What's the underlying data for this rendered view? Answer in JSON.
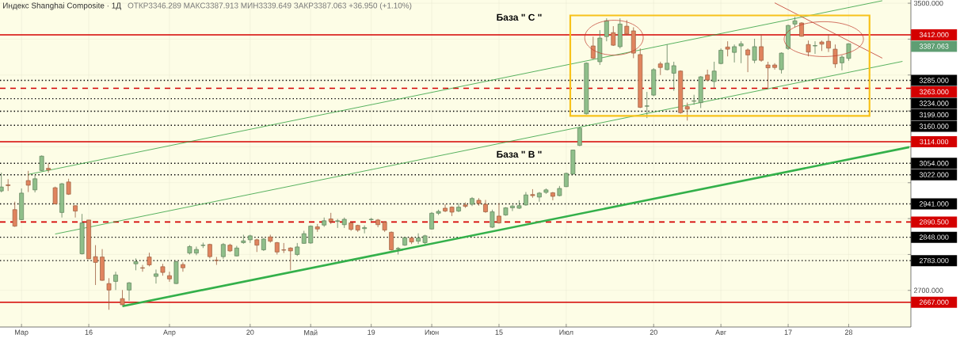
{
  "chart_data": {
    "type": "candlestick",
    "title": "Индекс Shanghai Composite · 1Д",
    "subtitle": "ОТКР3346.289 МАКС3387.913 МИН3339.649 ЗАКР3387.063 +36.950 (+1.10%)",
    "categories": [
      null,
      null,
      null,
      "Мар",
      null,
      null,
      null,
      null,
      null,
      null,
      null,
      null,
      null,
      "16",
      null,
      null,
      null,
      null,
      null,
      null,
      null,
      null,
      null,
      null,
      null,
      "Апр",
      null,
      null,
      null,
      null,
      null,
      null,
      null,
      null,
      null,
      null,
      null,
      "20",
      null,
      null,
      null,
      null,
      null,
      null,
      null,
      null,
      "Май",
      null,
      null,
      null,
      null,
      null,
      null,
      null,
      null,
      "19",
      null,
      null,
      null,
      null,
      null,
      null,
      null,
      null,
      "Июн",
      null,
      null,
      null,
      null,
      null,
      null,
      null,
      null,
      null,
      "15",
      null,
      null,
      null,
      null,
      null,
      null,
      null,
      null,
      null,
      "Июл",
      null,
      null,
      null,
      null,
      null,
      null,
      null,
      null,
      null,
      null,
      null,
      null,
      "20",
      null,
      null,
      null,
      null,
      null,
      null,
      null,
      null,
      null,
      "Авг",
      null,
      null,
      null,
      null,
      null,
      null,
      null,
      null,
      null,
      "17",
      null,
      null,
      null,
      null,
      null,
      null,
      null,
      null,
      "28",
      null,
      null,
      null,
      null,
      null,
      null,
      null,
      null,
      null
    ],
    "ohlc": [
      [
        2977,
        3028,
        2973,
        2988
      ],
      [
        2994,
        3010,
        2977,
        2992
      ],
      [
        2925,
        2947,
        2877,
        2879
      ],
      [
        2897,
        2984,
        2896,
        2971
      ],
      [
        3006,
        3033,
        2974,
        2993
      ],
      [
        2980,
        3021,
        2973,
        3011
      ],
      [
        3034,
        3076,
        3032,
        3074
      ],
      [
        3040,
        3054,
        3028,
        3036
      ],
      [
        2986,
        2989,
        2940,
        2941
      ],
      [
        2917,
        2999,
        2903,
        2997
      ],
      [
        3002,
        3011,
        2966,
        2968
      ],
      [
        2936,
        2936,
        2903,
        2921
      ],
      [
        2802,
        2913,
        2800,
        2888
      ],
      [
        2896,
        2896,
        2788,
        2788
      ],
      [
        2794,
        2826,
        2715,
        2778
      ],
      [
        2793,
        2815,
        2727,
        2728
      ],
      [
        2719,
        2734,
        2646,
        2701
      ],
      [
        2725,
        2752,
        2701,
        2743
      ],
      [
        2677,
        2701,
        2659,
        2660
      ],
      [
        2701,
        2723,
        2671,
        2721
      ],
      [
        2774,
        2789,
        2756,
        2780
      ],
      [
        2763,
        2771,
        2752,
        2762
      ],
      [
        2793,
        2805,
        2767,
        2771
      ],
      [
        2739,
        2758,
        2719,
        2746
      ],
      [
        2766,
        2774,
        2741,
        2750
      ],
      [
        2741,
        2752,
        2724,
        2732
      ],
      [
        2719,
        2782,
        2718,
        2780
      ],
      [
        2772,
        2778,
        2752,
        2763
      ],
      [
        2804,
        2826,
        2800,
        2822
      ],
      [
        2804,
        2822,
        2798,
        2814
      ],
      [
        2825,
        2833,
        2818,
        2826
      ],
      [
        2828,
        2830,
        2789,
        2794
      ],
      [
        2784,
        2793,
        2771,
        2783
      ],
      [
        2794,
        2832,
        2788,
        2828
      ],
      [
        2826,
        2830,
        2807,
        2810
      ],
      [
        2796,
        2824,
        2795,
        2818
      ],
      [
        2833,
        2855,
        2830,
        2838
      ],
      [
        2841,
        2855,
        2832,
        2852
      ],
      [
        2841,
        2844,
        2807,
        2826
      ],
      [
        2813,
        2846,
        2810,
        2843
      ],
      [
        2849,
        2855,
        2833,
        2837
      ],
      [
        2833,
        2835,
        2800,
        2807
      ],
      [
        2813,
        2832,
        2804,
        2812
      ],
      [
        2818,
        2820,
        2756,
        2810
      ],
      [
        2800,
        2832,
        2796,
        2821
      ],
      [
        2831,
        2866,
        2830,
        2858
      ],
      [
        2832,
        2881,
        2830,
        2879
      ],
      [
        2877,
        2885,
        2863,
        2871
      ],
      [
        2882,
        2903,
        2877,
        2894
      ],
      [
        2899,
        2916,
        2885,
        2892
      ],
      [
        2892,
        2899,
        2874,
        2894
      ],
      [
        2883,
        2903,
        2874,
        2898
      ],
      [
        2888,
        2892,
        2866,
        2870
      ],
      [
        2881,
        2883,
        2863,
        2868
      ],
      [
        2872,
        2881,
        2859,
        2875
      ],
      [
        2897,
        2902,
        2892,
        2898
      ],
      [
        2896,
        2899,
        2876,
        2883
      ],
      [
        2890,
        2892,
        2863,
        2868
      ],
      [
        2862,
        2864,
        2811,
        2813
      ],
      [
        2816,
        2821,
        2800,
        2817
      ],
      [
        2826,
        2848,
        2824,
        2847
      ],
      [
        2846,
        2850,
        2829,
        2835
      ],
      [
        2837,
        2859,
        2829,
        2846
      ],
      [
        2833,
        2855,
        2829,
        2852
      ],
      [
        2871,
        2918,
        2870,
        2915
      ],
      [
        2915,
        2925,
        2910,
        2920
      ],
      [
        2929,
        2940,
        2918,
        2921
      ],
      [
        2932,
        2934,
        2907,
        2918
      ],
      [
        2921,
        2943,
        2918,
        2932
      ],
      [
        2938,
        2945,
        2930,
        2934
      ],
      [
        2940,
        2960,
        2935,
        2956
      ],
      [
        2951,
        2957,
        2936,
        2942
      ],
      [
        2940,
        2952,
        2916,
        2919
      ],
      [
        2876,
        2925,
        2874,
        2919
      ],
      [
        2907,
        2943,
        2886,
        2888
      ],
      [
        2910,
        2932,
        2908,
        2930
      ],
      [
        2930,
        2938,
        2921,
        2935
      ],
      [
        2929,
        2951,
        2927,
        2936
      ],
      [
        2938,
        2974,
        2936,
        2966
      ],
      [
        2967,
        2982,
        2958,
        2964
      ],
      [
        2960,
        2974,
        2947,
        2971
      ],
      [
        2973,
        2984,
        2969,
        2980
      ],
      [
        2972,
        2974,
        2951,
        2962
      ],
      [
        2964,
        2991,
        2962,
        2984
      ],
      [
        2989,
        3028,
        2988,
        3026
      ],
      [
        3024,
        3092,
        3023,
        3091
      ],
      [
        3104,
        3155,
        3102,
        3152
      ],
      [
        3192,
        3335,
        3190,
        3333
      ],
      [
        3381,
        3407,
        3344,
        3347
      ],
      [
        3337,
        3425,
        3328,
        3403
      ],
      [
        3407,
        3458,
        3394,
        3451
      ],
      [
        3418,
        3436,
        3381,
        3383
      ],
      [
        3379,
        3458,
        3374,
        3442
      ],
      [
        3436,
        3453,
        3411,
        3414
      ],
      [
        3423,
        3433,
        3347,
        3361
      ],
      [
        3357,
        3374,
        3208,
        3210
      ],
      [
        3213,
        3253,
        3180,
        3214
      ],
      [
        3244,
        3319,
        3241,
        3315
      ],
      [
        3331,
        3337,
        3300,
        3321
      ],
      [
        3315,
        3385,
        3313,
        3333
      ],
      [
        3305,
        3337,
        3256,
        3326
      ],
      [
        3311,
        3313,
        3192,
        3195
      ],
      [
        3212,
        3223,
        3173,
        3205
      ],
      [
        3227,
        3245,
        3217,
        3228
      ],
      [
        3223,
        3297,
        3208,
        3295
      ],
      [
        3300,
        3315,
        3282,
        3286
      ],
      [
        3282,
        3337,
        3264,
        3311
      ],
      [
        3332,
        3374,
        3330,
        3369
      ],
      [
        3378,
        3394,
        3352,
        3372
      ],
      [
        3363,
        3385,
        3335,
        3379
      ],
      [
        3381,
        3394,
        3333,
        3387
      ],
      [
        3370,
        3374,
        3308,
        3356
      ],
      [
        3341,
        3401,
        3333,
        3379
      ],
      [
        3379,
        3414,
        3337,
        3341
      ],
      [
        3328,
        3337,
        3261,
        3320
      ],
      [
        3328,
        3333,
        3315,
        3321
      ],
      [
        3315,
        3363,
        3304,
        3361
      ],
      [
        3374,
        3440,
        3370,
        3438
      ],
      [
        3442,
        3462,
        3433,
        3451
      ],
      [
        3445,
        3447,
        3407,
        3408
      ],
      [
        3385,
        3396,
        3352,
        3364
      ],
      [
        3381,
        3394,
        3359,
        3382
      ],
      [
        3392,
        3396,
        3367,
        3386
      ],
      [
        3394,
        3414,
        3364,
        3375
      ],
      [
        3372,
        3385,
        3320,
        3331
      ],
      [
        3334,
        3355,
        3313,
        3350
      ],
      [
        3346.289,
        3387.913,
        3339.649,
        3387.063
      ],
      null,
      null,
      null,
      null,
      null,
      null,
      null,
      null,
      null
    ],
    "series": [
      {
        "type": "line",
        "color": "#33b04a",
        "values": [
          null,
          null,
          null,
          null,
          null,
          null,
          null,
          null,
          null,
          null,
          null,
          null,
          null,
          null,
          null,
          null,
          null,
          null,
          2656,
          null,
          null,
          null,
          null,
          null,
          null,
          null,
          null,
          null,
          null,
          null,
          null,
          null,
          null,
          null,
          null,
          null,
          null,
          null,
          null,
          null,
          null,
          null,
          null,
          null,
          null,
          null,
          null,
          null,
          null,
          null,
          null,
          null,
          null,
          null,
          null,
          null,
          null,
          null,
          null,
          null,
          null,
          null,
          null,
          null,
          null,
          null,
          null,
          null,
          null,
          null,
          null,
          null,
          null,
          null,
          null,
          null,
          null,
          null,
          null,
          null,
          null,
          null,
          null,
          null,
          null,
          null,
          null,
          null,
          null,
          null,
          null,
          null,
          null,
          null,
          null,
          null,
          null,
          null,
          null,
          null,
          null,
          null,
          null,
          null,
          null,
          null,
          null,
          null,
          null,
          null,
          null,
          null,
          null,
          null,
          null,
          null,
          null,
          null,
          null,
          null,
          null,
          null,
          null,
          null,
          null,
          null,
          null,
          null,
          null,
          null,
          null,
          null,
          null,
          null,
          null,
          3099
        ]
      },
      {
        "type": "line",
        "color": "#2e9e3e",
        "values": [
          null,
          null,
          null,
          null,
          3023,
          null,
          null,
          null,
          null,
          null,
          null,
          null,
          null,
          null,
          null,
          null,
          null,
          null,
          null,
          null,
          null,
          null,
          null,
          null,
          null,
          null,
          null,
          null,
          null,
          null,
          null,
          null,
          null,
          null,
          null,
          null,
          null,
          null,
          null,
          null,
          null,
          null,
          null,
          null,
          null,
          null,
          null,
          null,
          null,
          null,
          null,
          null,
          null,
          null,
          null,
          null,
          null,
          null,
          null,
          null,
          null,
          null,
          null,
          null,
          null,
          null,
          null,
          null,
          null,
          null,
          null,
          null,
          null,
          null,
          null,
          null,
          null,
          null,
          null,
          null,
          null,
          null,
          null,
          null,
          null,
          null,
          null,
          null,
          null,
          null,
          null,
          null,
          null,
          null,
          null,
          null,
          null,
          null,
          null,
          null,
          null,
          null,
          null,
          null,
          null,
          null,
          null,
          null,
          null,
          null,
          null,
          null,
          null,
          null,
          null,
          null,
          null,
          null,
          null,
          null,
          null,
          null,
          null,
          null,
          null,
          null,
          null,
          null,
          null,
          null,
          null,
          3507,
          null,
          null,
          null,
          null
        ]
      },
      {
        "type": "line",
        "color": "#2e9e3e",
        "values": [
          null,
          null,
          null,
          null,
          null,
          null,
          null,
          null,
          2857,
          null,
          null,
          null,
          null,
          null,
          null,
          null,
          null,
          null,
          null,
          null,
          null,
          null,
          null,
          null,
          null,
          null,
          null,
          null,
          null,
          null,
          null,
          null,
          null,
          null,
          null,
          null,
          null,
          null,
          null,
          null,
          null,
          null,
          null,
          null,
          null,
          null,
          null,
          null,
          null,
          null,
          null,
          null,
          null,
          null,
          null,
          null,
          null,
          null,
          null,
          null,
          null,
          null,
          null,
          null,
          null,
          null,
          null,
          null,
          null,
          null,
          null,
          null,
          null,
          null,
          null,
          null,
          null,
          null,
          null,
          null,
          null,
          null,
          null,
          null,
          null,
          null,
          null,
          null,
          null,
          null,
          null,
          null,
          null,
          null,
          null,
          null,
          null,
          null,
          null,
          null,
          null,
          null,
          null,
          null,
          null,
          null,
          null,
          null,
          null,
          null,
          null,
          null,
          null,
          null,
          null,
          null,
          null,
          null,
          null,
          null,
          null,
          null,
          null,
          null,
          null,
          null,
          null,
          null,
          null,
          null,
          null,
          null,
          null,
          null,
          3338,
          null
        ]
      },
      {
        "type": "line",
        "color": "#c0392b",
        "values": [
          null,
          null,
          null,
          null,
          null,
          null,
          null,
          null,
          null,
          null,
          null,
          null,
          null,
          null,
          null,
          null,
          null,
          null,
          null,
          null,
          null,
          null,
          null,
          null,
          null,
          null,
          null,
          null,
          null,
          null,
          null,
          null,
          null,
          null,
          null,
          null,
          null,
          null,
          null,
          null,
          null,
          null,
          null,
          null,
          null,
          null,
          null,
          null,
          null,
          null,
          null,
          null,
          null,
          null,
          null,
          null,
          null,
          null,
          null,
          null,
          null,
          null,
          null,
          null,
          null,
          null,
          null,
          null,
          null,
          null,
          null,
          null,
          null,
          null,
          null,
          null,
          null,
          null,
          null,
          null,
          null,
          null,
          null,
          null,
          null,
          null,
          null,
          null,
          null,
          null,
          null,
          null,
          null,
          null,
          null,
          null,
          null,
          null,
          null,
          null,
          null,
          null,
          null,
          null,
          null,
          null,
          null,
          null,
          null,
          null,
          null,
          null,
          null,
          null,
          null,
          3501,
          null,
          null,
          null,
          null,
          null,
          null,
          null,
          null,
          null,
          null,
          null,
          null,
          null,
          null,
          null,
          3347,
          null,
          null,
          null,
          null
        ]
      }
    ],
    "ylim": [
      2598,
      3509
    ],
    "yticks": [
      {
        "value": 2700,
        "label": "2700.000"
      },
      {
        "value": 2800,
        "label": null
      },
      {
        "value": 2900,
        "label": null
      },
      {
        "value": 3000,
        "label": null
      },
      {
        "value": 3100,
        "label": null
      },
      {
        "value": 3200,
        "label": null
      },
      {
        "value": 3300,
        "label": null
      },
      {
        "value": 3400,
        "label": null
      },
      {
        "value": 3500,
        "label": "3500.000"
      }
    ],
    "grid": true,
    "ref_lines": [
      {
        "axis": "y",
        "value": 3412,
        "label": "3412.000",
        "color": "#d40000",
        "line_style": "solid"
      },
      {
        "axis": "y",
        "value": 3285,
        "label": "3285.000",
        "color": "#000000",
        "line_style": "dotted"
      },
      {
        "axis": "y",
        "value": 3263,
        "label": "3263.000",
        "color": "#d40000",
        "line_style": "dashed"
      },
      {
        "axis": "y",
        "value": 3234,
        "label": "3234.000",
        "color": "#000000",
        "line_style": "dotted"
      },
      {
        "axis": "y",
        "value": 3199,
        "label": "3199.000",
        "color": "#000000",
        "line_style": "dotted"
      },
      {
        "axis": "y",
        "value": 3160,
        "label": "3160.000",
        "color": "#000000",
        "line_style": "dotted"
      },
      {
        "axis": "y",
        "value": 3114,
        "label": "3114.000",
        "color": "#d40000",
        "line_style": "solid"
      },
      {
        "axis": "y",
        "value": 3054,
        "label": "3054.000",
        "color": "#000000",
        "line_style": "dotted"
      },
      {
        "axis": "y",
        "value": 3022,
        "label": "3022.000",
        "color": "#000000",
        "line_style": "dotted"
      },
      {
        "axis": "y",
        "value": 2941,
        "label": "2941.000",
        "color": "#000000",
        "line_style": "dotted"
      },
      {
        "axis": "y",
        "value": 2890.5,
        "label": "2890.500",
        "color": "#d40000",
        "line_style": "dashed"
      },
      {
        "axis": "y",
        "value": 2848,
        "label": "2848.000",
        "color": "#000000",
        "line_style": "dotted"
      },
      {
        "axis": "y",
        "value": 2783,
        "label": "2783.000",
        "color": "#000000",
        "line_style": "dotted"
      },
      {
        "axis": "y",
        "value": 2667,
        "label": "2667.000",
        "color": "#d40000",
        "line_style": "solid"
      }
    ],
    "annotations": [
      "База \" С \"",
      "База \" В \"",
      "3387.063"
    ]
  }
}
